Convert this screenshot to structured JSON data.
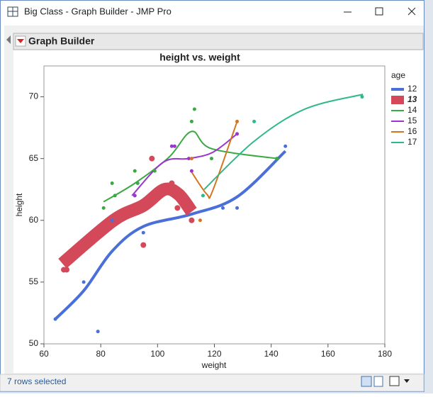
{
  "window": {
    "title": "Big Class - Graph Builder - JMP Pro"
  },
  "panel": {
    "title": "Graph Builder"
  },
  "status": {
    "text": "7 rows selected"
  },
  "chart_data": {
    "type": "scatter",
    "title": "height vs. weight",
    "x_label": "weight",
    "y_label": "height",
    "xlim": [
      60,
      180
    ],
    "ylim": [
      50,
      72.5
    ],
    "xticks": [
      60,
      80,
      100,
      120,
      140,
      160,
      180
    ],
    "yticks": [
      50,
      55,
      60,
      65,
      70
    ],
    "legend_title": "age",
    "legend": "right",
    "series": [
      {
        "name": "12",
        "color": "#4a6fd8",
        "selected": false,
        "x": [
          64,
          74,
          79,
          84,
          95,
          123,
          128,
          145
        ],
        "values": [
          52,
          55,
          51,
          60,
          59,
          61,
          61,
          66
        ],
        "fit_x": [
          64,
          74,
          84,
          95,
          112,
          128,
          145
        ],
        "fit_values": [
          52,
          54.3,
          57.5,
          59.5,
          60.5,
          61.9,
          65.6
        ]
      },
      {
        "name": "13",
        "color": "#d3495a",
        "selected": true,
        "x": [
          67,
          68,
          95,
          98,
          105,
          107,
          112
        ],
        "values": [
          56,
          56,
          58,
          65,
          63,
          61,
          60
        ],
        "fit_x": [
          66.5,
          84.5,
          95,
          102.4,
          107.4,
          112
        ],
        "fit_values": [
          56.5,
          60,
          61.2,
          62.5,
          62.1,
          60.7
        ]
      },
      {
        "name": "14",
        "color": "#3aa843",
        "selected": false,
        "x": [
          81,
          84,
          85,
          92,
          93,
          99,
          112,
          113,
          119,
          142
        ],
        "values": [
          61,
          63,
          62,
          64,
          63,
          64,
          68,
          69,
          65,
          65
        ],
        "fit_x": [
          81,
          92,
          104,
          112,
          119,
          142
        ],
        "fit_values": [
          61.5,
          63,
          65.1,
          67.2,
          65.8,
          65
        ]
      },
      {
        "name": "15",
        "color": "#9a35cf",
        "selected": false,
        "x": [
          92,
          105,
          106,
          111,
          112,
          128
        ],
        "values": [
          62,
          66,
          66,
          65,
          64,
          67
        ],
        "fit_x": [
          91,
          102,
          111,
          119.4,
          128
        ],
        "fit_values": [
          62,
          64.7,
          65,
          65.5,
          67
        ]
      },
      {
        "name": "16",
        "color": "#d4761f",
        "selected": false,
        "x": [
          112,
          115,
          128
        ],
        "values": [
          65,
          60,
          68
        ],
        "fit_x": [
          112,
          117.4,
          119.4,
          128
        ],
        "fit_values": [
          63.9,
          62.1,
          62.4,
          68
        ]
      },
      {
        "name": "17",
        "color": "#2fb88a",
        "selected": false,
        "x": [
          116,
          134,
          172
        ],
        "values": [
          62,
          68,
          70
        ],
        "fit_x": [
          116.4,
          134,
          151.8,
          172.3
        ],
        "fit_values": [
          62.5,
          66.4,
          69,
          70.2
        ]
      }
    ]
  }
}
